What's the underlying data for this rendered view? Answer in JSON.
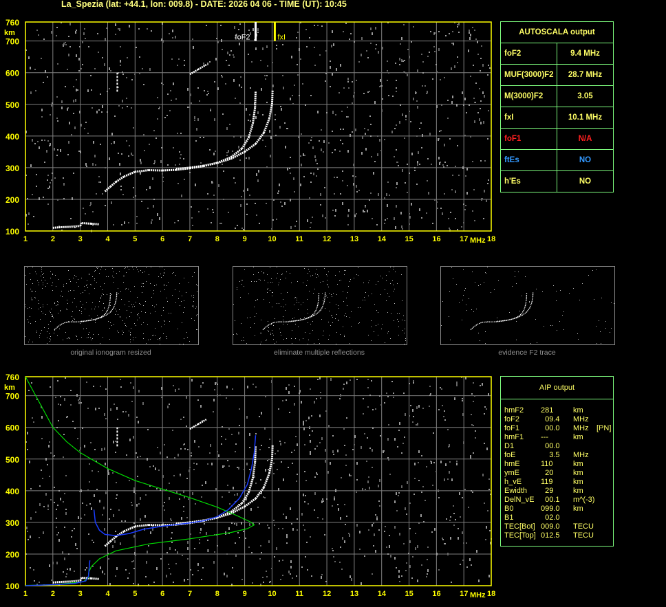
{
  "title": "La_Spezia (lat: +44.1, lon: 009.8) - DATE: 2026 04 06 - TIME (UT): 10:45",
  "colors": {
    "axis": "#ffff00",
    "grid": "#808080",
    "trace": "#ffffff",
    "profile": "#00dd00",
    "aip_trace": "#1a3cff",
    "panel_border": "#7fff7f",
    "panel_text": "#ffff66",
    "na": "#ff2020",
    "es": "#3399ff"
  },
  "chart_data": {
    "type": "scatter",
    "xlabel": "MHz",
    "ylabel": "km",
    "xlim": [
      1,
      18
    ],
    "ylim": [
      100,
      760
    ],
    "x_ticks": [
      "1",
      "2",
      "3",
      "4",
      "5",
      "6",
      "7",
      "8",
      "9",
      "10",
      "11",
      "12",
      "13",
      "14",
      "15",
      "16",
      "17",
      "18"
    ],
    "y_ticks": [
      "100",
      "200",
      "300",
      "400",
      "500",
      "600",
      "700",
      "760"
    ],
    "markers": [
      {
        "label": "foF2",
        "freq": 9.4,
        "color": "#ffffff"
      },
      {
        "label": "fxI",
        "freq": 10.1,
        "color": "#ffff00"
      }
    ],
    "o_trace": [
      [
        3.9,
        225
      ],
      [
        4.1,
        240
      ],
      [
        4.3,
        255
      ],
      [
        4.6,
        272
      ],
      [
        5,
        287
      ],
      [
        5.5,
        292
      ],
      [
        6,
        291
      ],
      [
        6.5,
        293
      ],
      [
        7,
        298
      ],
      [
        7.5,
        305
      ],
      [
        8,
        315
      ],
      [
        8.5,
        333
      ],
      [
        8.9,
        360
      ],
      [
        9.15,
        395
      ],
      [
        9.3,
        440
      ],
      [
        9.38,
        490
      ],
      [
        9.4,
        540
      ]
    ],
    "x_trace": [
      [
        6.5,
        296
      ],
      [
        7,
        300
      ],
      [
        7.5,
        306
      ],
      [
        8,
        315
      ],
      [
        8.5,
        328
      ],
      [
        9,
        350
      ],
      [
        9.4,
        375
      ],
      [
        9.7,
        410
      ],
      [
        9.9,
        455
      ],
      [
        10,
        500
      ],
      [
        10.02,
        545
      ]
    ],
    "low_trace": [
      [
        2,
        110
      ],
      [
        2.3,
        112
      ],
      [
        2.6,
        113
      ],
      [
        3,
        116
      ],
      [
        3.05,
        125
      ],
      [
        3.4,
        123
      ],
      [
        3.7,
        121
      ]
    ],
    "other_trace": [
      [
        7,
        595
      ],
      [
        7.3,
        610
      ],
      [
        7.6,
        625
      ],
      [
        4.35,
        540
      ],
      [
        4.35,
        600
      ]
    ],
    "profile": [
      [
        1,
        760
      ],
      [
        1.5,
        680
      ],
      [
        2,
        600
      ],
      [
        2.5,
        555
      ],
      [
        3,
        520
      ],
      [
        4,
        470
      ],
      [
        5,
        432
      ],
      [
        6,
        405
      ],
      [
        7,
        378
      ],
      [
        8,
        348
      ],
      [
        8.7,
        322
      ],
      [
        9.2,
        302
      ],
      [
        9.35,
        292
      ],
      [
        9.1,
        280
      ],
      [
        8.5,
        268
      ],
      [
        7,
        248
      ],
      [
        5.5,
        232
      ],
      [
        4.3,
        210
      ],
      [
        3.7,
        185
      ],
      [
        3.4,
        160
      ],
      [
        3.3,
        140
      ],
      [
        3.3,
        125
      ],
      [
        3.1,
        112
      ],
      [
        2,
        103
      ],
      [
        1,
        101
      ]
    ],
    "aip_trace": [
      [
        1,
        100
      ],
      [
        2,
        103
      ],
      [
        2.8,
        107
      ],
      [
        3.2,
        115
      ],
      [
        3.3,
        130
      ],
      [
        3.32,
        150
      ],
      [
        3.35,
        180
      ]
    ],
    "aip_trace2": [
      [
        3.5,
        340
      ],
      [
        3.55,
        300
      ],
      [
        3.7,
        275
      ],
      [
        3.9,
        262
      ],
      [
        4.3,
        258
      ],
      [
        4.8,
        265
      ],
      [
        5.3,
        278
      ],
      [
        6,
        288
      ],
      [
        7,
        298
      ],
      [
        7.5,
        305
      ],
      [
        8,
        318
      ],
      [
        8.4,
        340
      ],
      [
        8.8,
        375
      ],
      [
        9.1,
        420
      ],
      [
        9.25,
        470
      ],
      [
        9.35,
        520
      ],
      [
        9.4,
        575
      ]
    ]
  },
  "autoscala": {
    "header": "AUTOSCALA output",
    "rows": [
      {
        "key": "foF2",
        "value": "9.4 MHz",
        "color": "#ffff66"
      },
      {
        "key": "MUF(3000)F2",
        "value": "28.7 MHz",
        "color": "#ffff66"
      },
      {
        "key": "M(3000)F2",
        "value": "3.05",
        "color": "#ffff66"
      },
      {
        "key": "fxI",
        "value": "10.1 MHz",
        "color": "#ffff66"
      },
      {
        "key": "foF1",
        "value": "N/A",
        "color": "#ff2020"
      },
      {
        "key": "ftEs",
        "value": "NO",
        "color": "#3399ff"
      },
      {
        "key": "h'Es",
        "value": "NO",
        "color": "#ffff66"
      }
    ]
  },
  "thumbnails": [
    {
      "caption": "original ionogram resized"
    },
    {
      "caption": "eliminate multiple reflections"
    },
    {
      "caption": "evidence F2 trace"
    }
  ],
  "aip": {
    "header": "AIP output",
    "rows": [
      [
        "hmF2",
        "281",
        "km",
        ""
      ],
      [
        "foF2",
        "  09.4",
        "MHz",
        ""
      ],
      [
        "foF1",
        "  00.0",
        "MHz",
        "[PN]"
      ],
      [
        "hmF1",
        "---",
        "km",
        ""
      ],
      [
        "D1",
        "  00.0",
        "",
        ""
      ],
      [
        "foE",
        "    3.5",
        "MHz",
        ""
      ],
      [
        "hmE",
        "110",
        "km",
        ""
      ],
      [
        "ymE",
        "  20",
        "km",
        ""
      ],
      [
        "h_vE",
        "119",
        "km",
        ""
      ],
      [
        "Ewidth",
        "  29",
        "km",
        ""
      ],
      [
        "DelN_vE",
        "  00.1",
        "m^(-3)",
        ""
      ],
      [
        "B0",
        "099.0",
        "km",
        ""
      ],
      [
        "B1",
        "  02.0",
        "",
        ""
      ],
      [
        "TEC[Bot]",
        "009.0",
        "TECU",
        ""
      ],
      [
        "TEC[Top]",
        "012.5",
        "TECU",
        ""
      ]
    ]
  }
}
